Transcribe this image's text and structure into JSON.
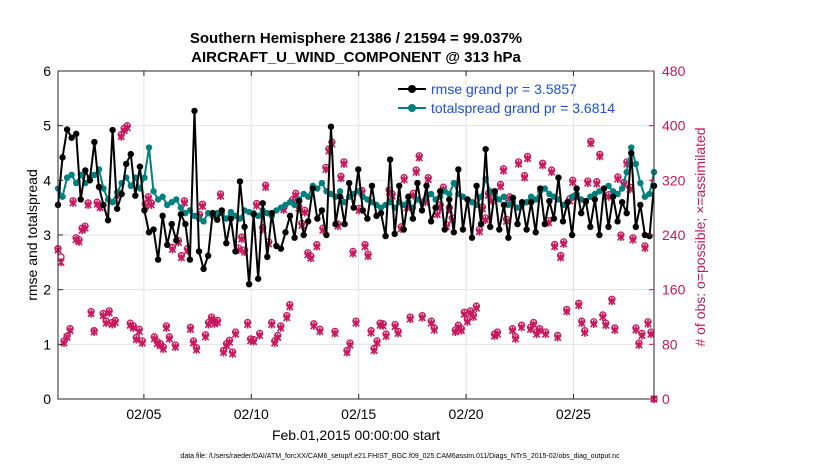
{
  "chart_data": {
    "type": "line",
    "title_line1": "Southern Hemisphere 21386 / 21594 = 99.037%",
    "title_line2": "AIRCRAFT_U_WIND_COMPONENT @ 313 hPa",
    "xlabel": "Feb.01,2015 00:00:00 start",
    "ylabel_left": "rmse and totalspread",
    "ylabel_right": "# of obs: o=possible; ×=assimilated",
    "footnote": "data file: /Users/raeder/DAI/ATM_forcXX/CAM6_setup/f.e21.FHIST_BGC.f09_025.CAM6assim.011/Diags_NTrS_2015-02/obs_diag_output.nc",
    "xlim": [
      1,
      28.75
    ],
    "ylim_left": [
      0,
      6
    ],
    "ylim_right": [
      0,
      480
    ],
    "x_tick_values": [
      5,
      10,
      15,
      20,
      25
    ],
    "x_tick_labels": [
      "02/05",
      "02/10",
      "02/15",
      "02/20",
      "02/25"
    ],
    "y_left_ticks": [
      "0",
      "1",
      "2",
      "3",
      "4",
      "5",
      "6"
    ],
    "y_right_ticks": [
      "0",
      "80",
      "160",
      "240",
      "320",
      "400",
      "480"
    ],
    "grid": true,
    "colors": {
      "rmse": "#000000",
      "spread": "#00807f",
      "obs": "#c8175d",
      "legend_text": "#1f4fd6",
      "grid": "#e2e2e2"
    },
    "series": [
      {
        "name": "rmse grand pr = 3.5857",
        "values": [
          3.55,
          4.42,
          4.93,
          4.78,
          4.85,
          3.65,
          4.18,
          4.0,
          4.7,
          3.88,
          3.55,
          3.27,
          4.92,
          3.48,
          3.75,
          4.3,
          4.48,
          3.72,
          4.25,
          3.45,
          3.05,
          3.1,
          2.55,
          3.35,
          2.82,
          3.2,
          2.9,
          3.38,
          3.2,
          2.55,
          5.27,
          2.7,
          2.38,
          2.62,
          3.4,
          3.28,
          3.45,
          2.85,
          3.3,
          2.7,
          3.98,
          3.15,
          2.1,
          3.38,
          2.2,
          3.58,
          2.6,
          3.4,
          2.8,
          2.75,
          3.05,
          3.35,
          2.95,
          3.62,
          3.0,
          3.25,
          3.85,
          3.3,
          3.45,
          3.0,
          4.98,
          3.2,
          3.7,
          3.2,
          3.95,
          3.5,
          4.2,
          3.45,
          3.3,
          3.9,
          3.35,
          3.4,
          2.98,
          4.38,
          3.02,
          3.9,
          3.1,
          3.7,
          3.3,
          3.95,
          3.45,
          3.9,
          3.25,
          3.5,
          3.8,
          3.1,
          3.65,
          3.05,
          4.2,
          3.1,
          3.65,
          2.95,
          3.9,
          3.2,
          4.57,
          3.15,
          3.8,
          3.1,
          3.55,
          2.95,
          3.68,
          3.2,
          3.6,
          3.1,
          3.6,
          3.05,
          3.85,
          3.2,
          3.62,
          3.3,
          4.05,
          3.25,
          3.6,
          3.0,
          3.85,
          3.4,
          3.62,
          3.15,
          3.65,
          3.0,
          3.85,
          3.15,
          3.7,
          3.25,
          3.6,
          3.4,
          4.5,
          3.15,
          3.55,
          3.0,
          2.98,
          3.9
        ]
      },
      {
        "name": "totalspread grand pr = 3.6814",
        "values": [
          3.85,
          3.7,
          4.05,
          4.1,
          3.95,
          4.1,
          3.95,
          4.05,
          4.1,
          4.2,
          3.85,
          3.65,
          3.6,
          3.78,
          3.95,
          4.05,
          3.9,
          4.05,
          3.85,
          4.05,
          4.6,
          3.8,
          3.65,
          3.7,
          3.55,
          3.6,
          3.65,
          3.5,
          3.4,
          3.45,
          3.35,
          3.3,
          3.25,
          3.4,
          3.35,
          3.4,
          3.4,
          3.3,
          3.42,
          3.35,
          3.3,
          3.45,
          3.42,
          3.4,
          3.35,
          3.45,
          3.4,
          3.35,
          3.45,
          3.5,
          3.55,
          3.6,
          3.55,
          3.65,
          3.75,
          3.7,
          3.9,
          3.85,
          3.95,
          3.8,
          3.75,
          3.7,
          3.8,
          3.6,
          3.7,
          3.75,
          3.8,
          3.7,
          3.65,
          3.6,
          3.55,
          3.5,
          3.55,
          3.6,
          3.5,
          3.6,
          3.55,
          3.6,
          3.5,
          3.65,
          3.6,
          3.7,
          3.75,
          3.65,
          3.7,
          3.8,
          3.75,
          3.95,
          3.75,
          3.7,
          3.65,
          3.6,
          3.55,
          3.7,
          4.03,
          3.8,
          3.75,
          3.65,
          3.7,
          3.55,
          3.6,
          3.5,
          3.55,
          3.6,
          3.7,
          3.65,
          3.8,
          3.85,
          3.75,
          3.7,
          3.65,
          3.55,
          3.6,
          3.7,
          3.75,
          3.65,
          3.6,
          3.7,
          3.75,
          3.8,
          3.85,
          3.9,
          3.8,
          3.75,
          3.85,
          4.15,
          4.6,
          4.3,
          3.95,
          3.7,
          3.75,
          4.15
        ]
      }
    ],
    "obs_possible": [
      220,
      208,
      85,
      92,
      103,
      290,
      236,
      233,
      250,
      253,
      287,
      128,
      100,
      288,
      283,
      125,
      114,
      129,
      112,
      115,
      302,
      387,
      396,
      400,
      111,
      107,
      90,
      102,
      85,
      285,
      296,
      287,
      91,
      84,
      81,
      76,
      107,
      91,
      222,
      79,
      232,
      210,
      290,
      220,
      105,
      85,
      75,
      270,
      285,
      94,
      112,
      120,
      113,
      115,
      300,
      71,
      81,
      86,
      69,
      98,
      221,
      237,
      218,
      112,
      88,
      87,
      286,
      96,
      251,
      313,
      230,
      112,
      85,
      93,
      107,
      280,
      122,
      138,
      292,
      301,
      282,
      257,
      276,
      214,
      209,
      110,
      226,
      102,
      250,
      339,
      366,
      376,
      99,
      256,
      326,
      347,
      71,
      82,
      216,
      114,
      279,
      305,
      226,
      212,
      100,
      74,
      85,
      111,
      110,
      95,
      306,
      300,
      109,
      99,
      252,
      324,
      283,
      120,
      301,
      335,
      356,
      122,
      291,
      324,
      114,
      104,
      273,
      284,
      310,
      255,
      280,
      265,
      101,
      108,
      103,
      127,
      116,
      129,
      123,
      136,
      248,
      281,
      265,
      301,
      293,
      95,
      98,
      314,
      337,
      263,
      296,
      103,
      91,
      347,
      108,
      327,
      355,
      105,
      112,
      98,
      103,
      345,
      98,
      261,
      335,
      226,
      93,
      210,
      230,
      131,
      293,
      320,
      298,
      140,
      114,
      100,
      319,
      377,
      113,
      318,
      358,
      123,
      111,
      299,
      146,
      104,
      325,
      240,
      317,
      347,
      310,
      236,
      104,
      82,
      96,
      224,
      113,
      98,
      0
    ],
    "obs_assimilated": [
      218,
      200,
      82,
      90,
      100,
      287,
      233,
      230,
      247,
      250,
      284,
      125,
      98,
      285,
      280,
      122,
      111,
      126,
      109,
      112,
      299,
      384,
      393,
      397,
      108,
      104,
      87,
      99,
      82,
      282,
      293,
      284,
      88,
      81,
      78,
      73,
      104,
      88,
      219,
      76,
      229,
      207,
      287,
      217,
      102,
      82,
      72,
      267,
      282,
      91,
      109,
      117,
      110,
      112,
      297,
      68,
      78,
      83,
      66,
      95,
      218,
      234,
      215,
      109,
      85,
      84,
      283,
      93,
      248,
      310,
      227,
      109,
      82,
      90,
      104,
      277,
      119,
      135,
      289,
      298,
      279,
      254,
      273,
      211,
      206,
      107,
      223,
      99,
      247,
      336,
      363,
      373,
      96,
      253,
      323,
      344,
      68,
      79,
      213,
      111,
      276,
      302,
      223,
      209,
      97,
      71,
      82,
      108,
      107,
      92,
      303,
      297,
      106,
      96,
      249,
      321,
      280,
      117,
      298,
      332,
      353,
      119,
      288,
      321,
      111,
      101,
      270,
      281,
      307,
      252,
      277,
      262,
      98,
      105,
      100,
      124,
      113,
      126,
      120,
      133,
      245,
      278,
      262,
      298,
      290,
      92,
      95,
      311,
      334,
      260,
      293,
      100,
      88,
      344,
      105,
      324,
      352,
      102,
      109,
      95,
      100,
      342,
      95,
      258,
      332,
      223,
      90,
      207,
      227,
      128,
      290,
      317,
      295,
      137,
      111,
      97,
      316,
      374,
      110,
      315,
      355,
      120,
      108,
      296,
      143,
      101,
      322,
      237,
      314,
      344,
      307,
      233,
      101,
      79,
      93,
      221,
      110,
      95,
      0
    ]
  }
}
